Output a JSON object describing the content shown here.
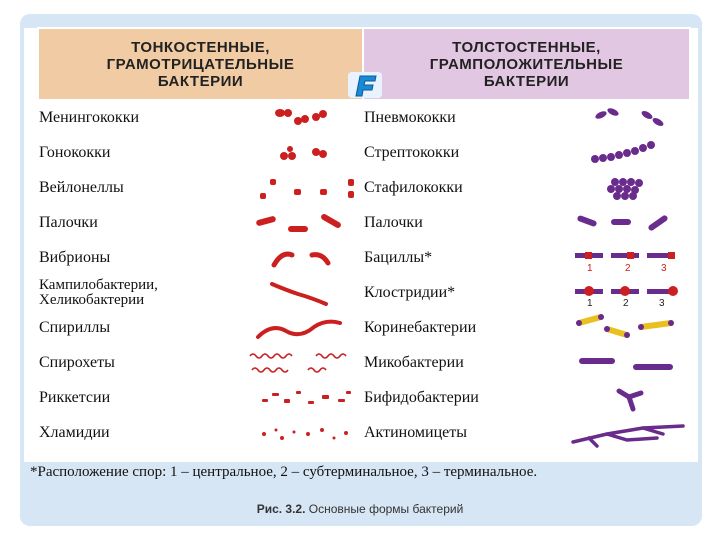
{
  "header": {
    "left": "ТОНКОСТЕННЫЕ,\nГРАМОТРИЦАТЕЛЬНЫЕ\nБАКТЕРИИ",
    "right": "ТОЛСТОСТЕННЫЕ,\nГРАМПОЛОЖИТЕЛЬНЫЕ\nБАКТЕРИИ"
  },
  "left_rows": [
    "Менингококки",
    "Гонококки",
    "Вейлонеллы",
    "Палочки",
    "Вибрионы",
    "Кампилобактерии,\nХеликобактерии",
    "Спириллы",
    "Спирохеты",
    "Риккетсии",
    "Хламидии"
  ],
  "right_rows": [
    "Пневмококки",
    "Стрептококки",
    "Стафилококки",
    "Палочки",
    "Бациллы*",
    "Клостридии*",
    "Коринебактерии",
    "Микобактерии",
    "Бифидобактерии",
    "Актиномицеты"
  ],
  "spore_numbers": [
    "1",
    "2",
    "3"
  ],
  "footnote": "*Расположение спор: 1 – центральное, 2 – субтерминальное, 3 – терминальное.",
  "caption": {
    "label": "Рис. 3.2.",
    "text": "Основные формы бактерий"
  },
  "colors": {
    "gram_negative": "#cc2020",
    "gram_positive": "#6a2c8c",
    "left_header": "#f0cba3",
    "right_header": "#e2c7e2",
    "frame": "#d7e6f4"
  }
}
